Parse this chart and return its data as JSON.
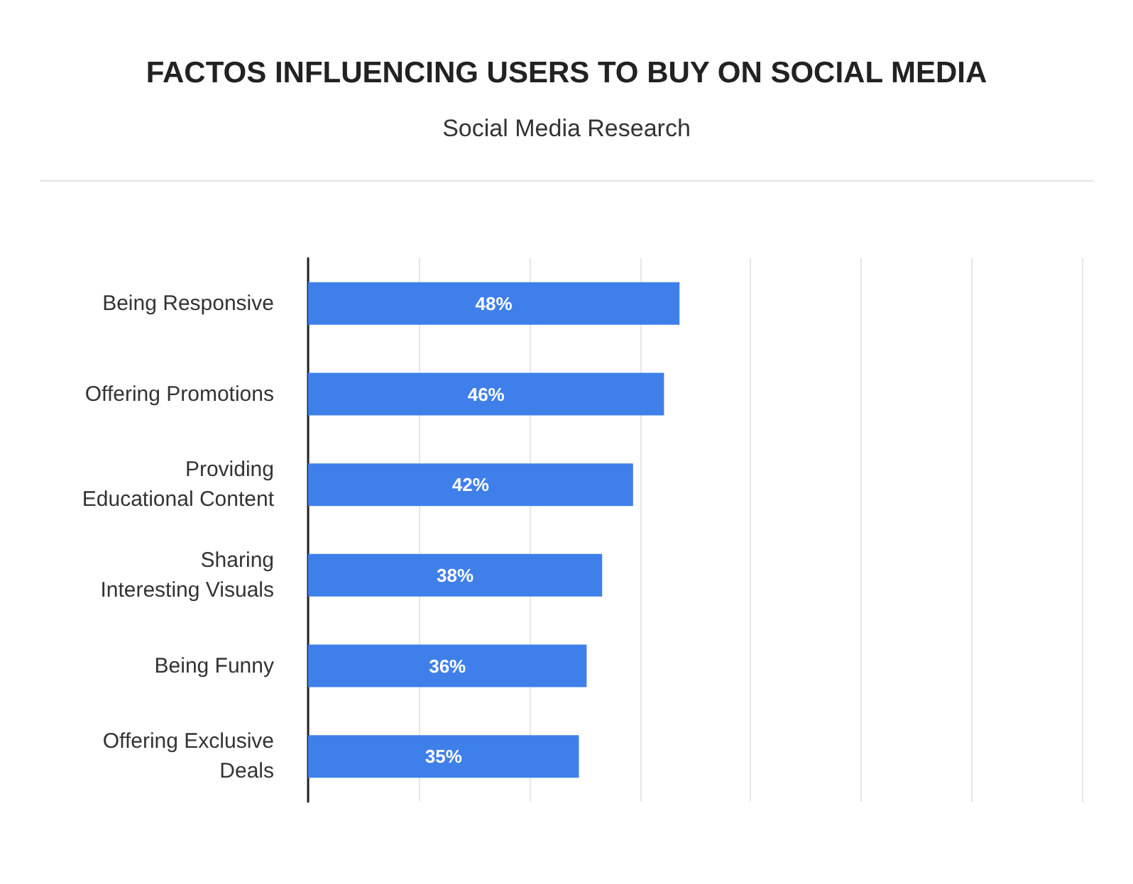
{
  "chart_data": {
    "type": "bar",
    "orientation": "horizontal",
    "title": "FACTOS INFLUENCING USERS TO BUY ON SOCIAL MEDIA",
    "subtitle": "Social Media Research",
    "categories": [
      "Being Responsive",
      "Offering Promotions",
      "Providing\nEducational Content",
      "Sharing\nInteresting Visuals",
      "Being Funny",
      "Offering Exclusive\nDeals"
    ],
    "values": [
      48,
      46,
      42,
      38,
      36,
      35
    ],
    "color": "#3f7fea",
    "value_labels": [
      "48%",
      "46%",
      "42%",
      "38%",
      "36%",
      "35%"
    ],
    "xlim": [
      0,
      100
    ],
    "xticks": [
      {
        "value": 0,
        "label": null
      },
      {
        "value": 14.3,
        "label": null
      },
      {
        "value": 28.6,
        "label": null
      },
      {
        "value": 42.9,
        "label": null
      },
      {
        "value": 57.1,
        "label": null
      },
      {
        "value": 71.4,
        "label": null
      },
      {
        "value": 85.7,
        "label": null
      },
      {
        "value": 100,
        "label": null
      }
    ],
    "grid": "x",
    "tick_labels": "y"
  }
}
